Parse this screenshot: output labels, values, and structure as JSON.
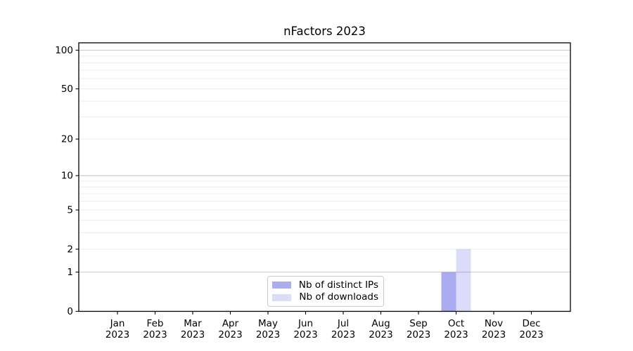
{
  "chart_data": {
    "type": "bar",
    "title": "nFactors 2023",
    "categories": [
      "Jan 2023",
      "Feb 2023",
      "Mar 2023",
      "Apr 2023",
      "May 2023",
      "Jun 2023",
      "Jul 2023",
      "Aug 2023",
      "Sep 2023",
      "Oct 2023",
      "Nov 2023",
      "Dec 2023"
    ],
    "series": [
      {
        "name": "Nb of distinct IPs",
        "color": "#acacf0",
        "fill_rgba": "rgba(60,60,225,0.43)",
        "values": [
          0,
          0,
          0,
          0,
          0,
          0,
          0,
          0,
          0,
          1,
          0,
          0
        ]
      },
      {
        "name": "Nb of downloads",
        "color": "#dcdcf6",
        "fill_rgba": "rgba(60,60,225,0.18)",
        "values": [
          0,
          0,
          0,
          0,
          0,
          0,
          0,
          0,
          0,
          2,
          0,
          0
        ]
      }
    ],
    "xlabel": "",
    "ylabel": "",
    "yscale": "log10(value+1)",
    "ylim": [
      0,
      114
    ],
    "yticks": [
      0,
      1,
      2,
      5,
      10,
      20,
      50,
      100
    ],
    "major_gridlines": [
      1,
      10,
      100
    ],
    "minor_gridlines": [
      2,
      3,
      4,
      5,
      6,
      7,
      8,
      9,
      20,
      30,
      40,
      50,
      60,
      70,
      80,
      90
    ],
    "grid": "horizontal",
    "legend_position": "lower center",
    "colors": {
      "axis": "#000000",
      "tick_label": "#000000",
      "major_grid": "#c9c9c9",
      "minor_grid": "#ececec",
      "legend_border": "#cccccc",
      "background": "#ffffff"
    }
  }
}
